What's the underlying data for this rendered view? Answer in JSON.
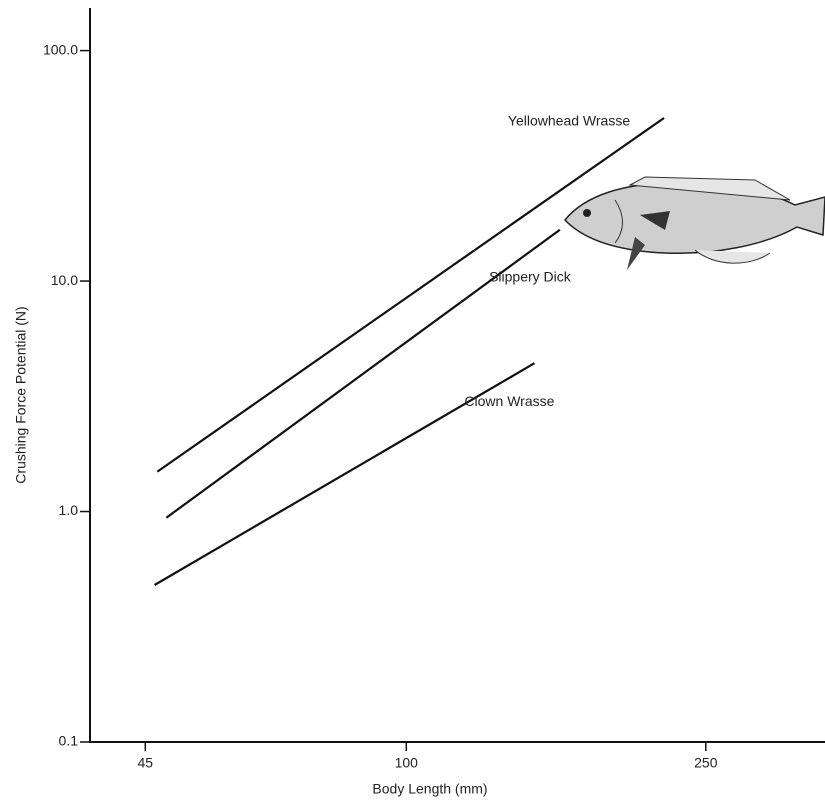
{
  "chart_data": {
    "type": "line",
    "x_label": "Body Length (mm)",
    "y_label": "Crushing Force Potential (N)",
    "x_log": true,
    "y_log": true,
    "xlim": [
      38,
      360
    ],
    "ylim": [
      0.1,
      150
    ],
    "xticks": [
      45,
      100,
      250
    ],
    "yticks": [
      {
        "value": 0.1,
        "label": "0.1"
      },
      {
        "value": 1,
        "label": "1.0"
      },
      {
        "value": 10,
        "label": "10.0"
      },
      {
        "value": 100,
        "label": "100.0"
      }
    ],
    "series": [
      {
        "name": "Yellowhead Wrasse",
        "color": "#111111",
        "x": [
          46.7,
          220
        ],
        "values": [
          1.49,
          51
        ]
      },
      {
        "name": "Slippery Dick",
        "color": "#111111",
        "x": [
          48,
          160
        ],
        "values": [
          0.94,
          16.7
        ]
      },
      {
        "name": "Clown Wrasse",
        "color": "#111111",
        "x": [
          46.3,
          148
        ],
        "values": [
          0.48,
          4.4
        ]
      }
    ]
  }
}
